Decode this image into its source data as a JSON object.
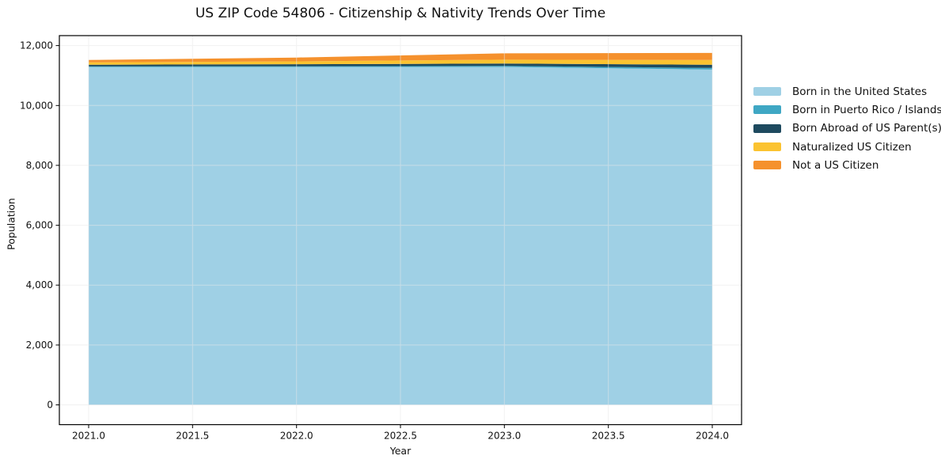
{
  "title": "US ZIP Code 54806 - Citizenship & Nativity Trends Over Time",
  "chart_data": {
    "type": "area",
    "stacked": true,
    "title": "US ZIP Code 54806 - Citizenship & Nativity Trends Over Time",
    "xlabel": "Year",
    "ylabel": "Population",
    "x": [
      2021,
      2022,
      2023,
      2024
    ],
    "series": [
      {
        "name": "Born in the United States",
        "color": "#9fd0e5",
        "values": [
          11280,
          11285,
          11290,
          11200
        ]
      },
      {
        "name": "Born in Puerto Rico / Islands",
        "color": "#3fa7c4",
        "values": [
          25,
          25,
          30,
          55
        ]
      },
      {
        "name": "Born Abroad of US Parent(s)",
        "color": "#1e4a5f",
        "values": [
          55,
          70,
          80,
          105
        ]
      },
      {
        "name": "Naturalized US Citizen",
        "color": "#fbc330",
        "values": [
          80,
          95,
          130,
          160
        ]
      },
      {
        "name": "Not a US Citizen",
        "color": "#f5912d",
        "values": [
          80,
          125,
          210,
          235
        ]
      }
    ],
    "x_ticks": {
      "values": [
        2021.0,
        2021.5,
        2022.0,
        2022.5,
        2023.0,
        2023.5,
        2024.0
      ],
      "labels": [
        "2021.0",
        "2021.5",
        "2022.0",
        "2022.5",
        "2023.0",
        "2023.5",
        "2024.0"
      ]
    },
    "y_ticks": {
      "values": [
        0,
        2000,
        4000,
        6000,
        8000,
        10000,
        12000
      ],
      "labels": [
        "0",
        "2,000",
        "4,000",
        "6,000",
        "8,000",
        "10,000",
        "12,000"
      ]
    },
    "xlim": [
      2020.85,
      2024.15
    ],
    "ylim": [
      -670,
      12280
    ],
    "grid": true,
    "legend_position": "right-outside"
  },
  "colors": {
    "background": "#ffffff",
    "grid": "#e7e7e7",
    "spine": "#000000",
    "text": "#111111"
  }
}
